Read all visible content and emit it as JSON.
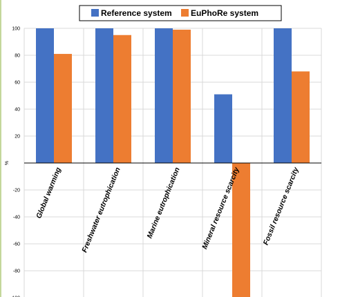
{
  "chart_data": {
    "type": "bar",
    "categories": [
      "Global warming",
      "Freshwater eutrophication",
      "Marine eutrophication",
      "Mineral resource scarcity",
      "Fossil resource scarcity"
    ],
    "series": [
      {
        "name": "Reference system",
        "color": "#4472c4",
        "values": [
          100,
          100,
          100,
          51,
          100
        ]
      },
      {
        "name": "EuPhoRe system",
        "color": "#ed7d31",
        "values": [
          81,
          95,
          99,
          -100,
          68
        ]
      }
    ],
    "ylabel": "%",
    "ylim": [
      -100,
      100
    ],
    "yticks": [
      -100,
      -80,
      -60,
      -40,
      -20,
      20,
      40,
      60,
      80,
      100
    ],
    "grid": "horizontal-and-vertical",
    "legend_position": "top-center"
  }
}
